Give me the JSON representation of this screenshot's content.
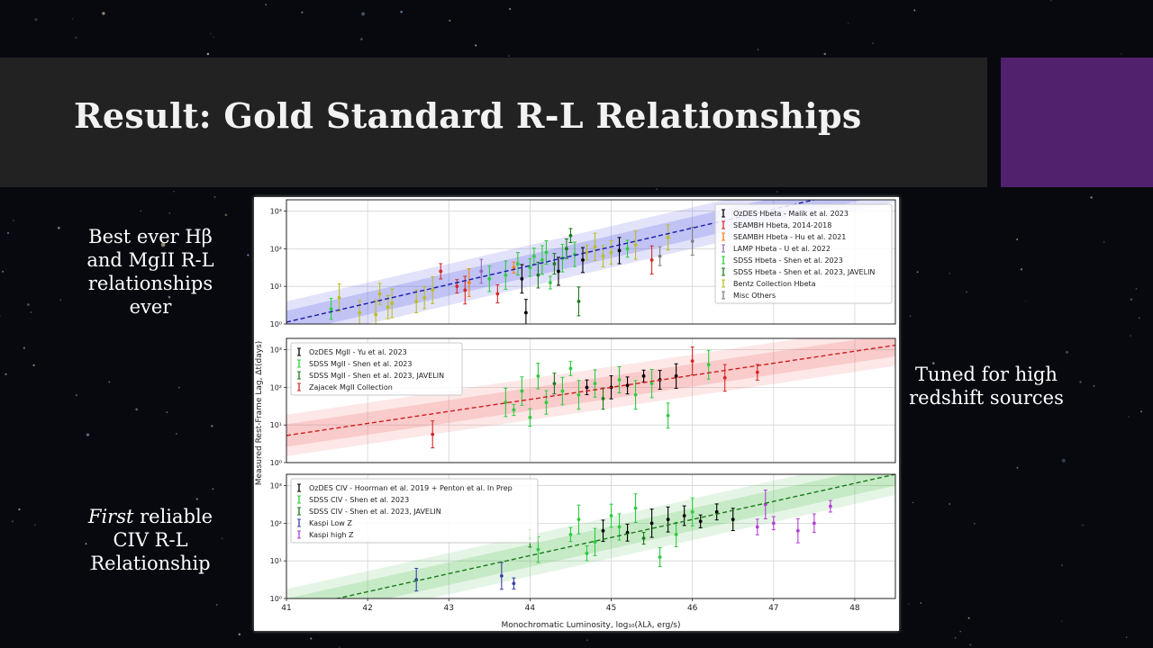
{
  "slide": {
    "title": "Result: Gold Standard R-L Relationships",
    "accent_color": "#52216e",
    "title_bar_color": "#222222",
    "text_left_1_lines": [
      "Best ever Hβ",
      "and MgII R-L",
      "relationships",
      "ever"
    ],
    "text_right_1_lines": [
      "Tuned for high",
      "redshift sources"
    ],
    "text_left_2_lines": [
      "First reliable",
      "CIV R-L",
      "Relationship"
    ]
  },
  "chart_data": {
    "type": "scatter",
    "xlabel": "Monochromatic Luminosity, log₁₀(λLλ, erg/s)",
    "ylabel": "Measured Rest-Frame Lag, Δt(days)",
    "xlim": [
      41,
      48.5
    ],
    "x_ticks": [
      41,
      42,
      43,
      44,
      45,
      46,
      47,
      48
    ],
    "grid": true,
    "panels": [
      {
        "name": "Hbeta",
        "ylim_log10": [
          0,
          3.3
        ],
        "y_tick_labels": [
          "10⁰",
          "10¹",
          "10²",
          "10³"
        ],
        "fit": {
          "intercept_at_41": 0.05,
          "slope": 0.5,
          "color": "#1a1aa8",
          "band_color": "#4b52e0"
        },
        "legend_position": "right",
        "legend": [
          {
            "label": "OzDES Hbeta - Malik et al. 2023",
            "color": "#000000"
          },
          {
            "label": "SEAMBH Hbeta, 2014-2018",
            "color": "#d62728"
          },
          {
            "label": "SEAMBH Hbeta - Hu et al. 2021",
            "color": "#ff7f0e"
          },
          {
            "label": "LAMP Hbeta - U et al. 2022",
            "color": "#9467bd"
          },
          {
            "label": "SDSS Hbeta - Shen et al. 2023",
            "color": "#2ecc40"
          },
          {
            "label": "SDSS Hbeta - Shen et al. 2023, JAVELIN",
            "color": "#1a7a1a"
          },
          {
            "label": "Bentz Collection Hbeta",
            "color": "#bcbd22"
          },
          {
            "label": "Misc Others",
            "color": "#7f7f7f"
          }
        ],
        "points": [
          {
            "x": 41.55,
            "y": 0.4,
            "s": 4
          },
          {
            "x": 41.65,
            "y": 0.7,
            "s": 6
          },
          {
            "x": 41.9,
            "y": 0.3,
            "s": 6
          },
          {
            "x": 42.1,
            "y": 0.25,
            "s": 6
          },
          {
            "x": 42.15,
            "y": 0.8,
            "s": 6
          },
          {
            "x": 42.25,
            "y": 0.45,
            "s": 6
          },
          {
            "x": 42.3,
            "y": 0.55,
            "s": 6
          },
          {
            "x": 42.6,
            "y": 0.6,
            "s": 6
          },
          {
            "x": 42.7,
            "y": 0.7,
            "s": 6
          },
          {
            "x": 42.8,
            "y": 0.9,
            "s": 6
          },
          {
            "x": 42.9,
            "y": 1.4,
            "s": 1
          },
          {
            "x": 43.1,
            "y": 1.0,
            "s": 1
          },
          {
            "x": 43.2,
            "y": 0.9,
            "s": 1
          },
          {
            "x": 43.25,
            "y": 1.1,
            "s": 2
          },
          {
            "x": 43.4,
            "y": 1.4,
            "s": 3
          },
          {
            "x": 43.5,
            "y": 1.2,
            "s": 4
          },
          {
            "x": 43.6,
            "y": 0.8,
            "s": 1
          },
          {
            "x": 43.7,
            "y": 1.3,
            "s": 4
          },
          {
            "x": 43.8,
            "y": 1.5,
            "s": 2
          },
          {
            "x": 43.85,
            "y": 1.6,
            "s": 4
          },
          {
            "x": 43.9,
            "y": 1.2,
            "s": 0
          },
          {
            "x": 43.95,
            "y": 0.3,
            "s": 0
          },
          {
            "x": 44.0,
            "y": 1.5,
            "s": 4
          },
          {
            "x": 44.05,
            "y": 1.8,
            "s": 4
          },
          {
            "x": 44.1,
            "y": 1.3,
            "s": 5
          },
          {
            "x": 44.15,
            "y": 1.7,
            "s": 4
          },
          {
            "x": 44.2,
            "y": 1.9,
            "s": 4
          },
          {
            "x": 44.25,
            "y": 1.1,
            "s": 4
          },
          {
            "x": 44.3,
            "y": 1.6,
            "s": 5
          },
          {
            "x": 44.35,
            "y": 1.4,
            "s": 0
          },
          {
            "x": 44.4,
            "y": 1.75,
            "s": 4
          },
          {
            "x": 44.45,
            "y": 2.0,
            "s": 5
          },
          {
            "x": 44.5,
            "y": 2.35,
            "s": 5
          },
          {
            "x": 44.55,
            "y": 1.85,
            "s": 4
          },
          {
            "x": 44.6,
            "y": 0.6,
            "s": 5
          },
          {
            "x": 44.65,
            "y": 1.7,
            "s": 0
          },
          {
            "x": 44.7,
            "y": 1.9,
            "s": 6
          },
          {
            "x": 44.8,
            "y": 2.05,
            "s": 6
          },
          {
            "x": 44.9,
            "y": 1.8,
            "s": 6
          },
          {
            "x": 45.0,
            "y": 1.9,
            "s": 6
          },
          {
            "x": 45.1,
            "y": 1.95,
            "s": 0
          },
          {
            "x": 45.2,
            "y": 2.0,
            "s": 4
          },
          {
            "x": 45.3,
            "y": 2.1,
            "s": 6
          },
          {
            "x": 45.5,
            "y": 1.7,
            "s": 1
          },
          {
            "x": 45.6,
            "y": 1.8,
            "s": 7
          },
          {
            "x": 45.7,
            "y": 2.3,
            "s": 6
          },
          {
            "x": 46.0,
            "y": 2.2,
            "s": 7
          }
        ]
      },
      {
        "name": "MgII",
        "ylim_log10": [
          0,
          3.3
        ],
        "y_tick_labels": [
          "10⁰",
          "10¹",
          "10²",
          "10³"
        ],
        "fit": {
          "intercept_at_41": 0.72,
          "slope": 0.32,
          "color": "#cc1f1f",
          "band_color": "#f06a6a"
        },
        "legend_position": "left",
        "legend": [
          {
            "label": "OzDES MgII - Yu et al. 2023",
            "color": "#000000"
          },
          {
            "label": "SDSS MgII - Shen et al. 2023",
            "color": "#2ecc40"
          },
          {
            "label": "SDSS MgII - Shen et al. 2023, JAVELIN",
            "color": "#1a7a1a"
          },
          {
            "label": "Zajacek MgII Collection",
            "color": "#d62728"
          }
        ],
        "points": [
          {
            "x": 42.8,
            "y": 0.75,
            "s": 3
          },
          {
            "x": 43.7,
            "y": 1.6,
            "s": 1
          },
          {
            "x": 43.8,
            "y": 1.4,
            "s": 1
          },
          {
            "x": 43.9,
            "y": 1.9,
            "s": 1
          },
          {
            "x": 44.0,
            "y": 1.2,
            "s": 1
          },
          {
            "x": 44.1,
            "y": 2.3,
            "s": 1
          },
          {
            "x": 44.2,
            "y": 1.6,
            "s": 1
          },
          {
            "x": 44.3,
            "y": 2.1,
            "s": 2
          },
          {
            "x": 44.4,
            "y": 1.9,
            "s": 1
          },
          {
            "x": 44.5,
            "y": 2.5,
            "s": 1
          },
          {
            "x": 44.6,
            "y": 1.8,
            "s": 1
          },
          {
            "x": 44.7,
            "y": 2.0,
            "s": 0
          },
          {
            "x": 44.8,
            "y": 2.1,
            "s": 1
          },
          {
            "x": 44.9,
            "y": 1.7,
            "s": 2
          },
          {
            "x": 45.0,
            "y": 2.0,
            "s": 0
          },
          {
            "x": 45.1,
            "y": 2.2,
            "s": 1
          },
          {
            "x": 45.2,
            "y": 2.05,
            "s": 0
          },
          {
            "x": 45.3,
            "y": 1.8,
            "s": 1
          },
          {
            "x": 45.4,
            "y": 2.3,
            "s": 0
          },
          {
            "x": 45.5,
            "y": 2.1,
            "s": 1
          },
          {
            "x": 45.6,
            "y": 2.2,
            "s": 0
          },
          {
            "x": 45.7,
            "y": 1.25,
            "s": 1
          },
          {
            "x": 45.8,
            "y": 2.3,
            "s": 0
          },
          {
            "x": 46.0,
            "y": 2.7,
            "s": 3
          },
          {
            "x": 46.2,
            "y": 2.6,
            "s": 1
          },
          {
            "x": 46.4,
            "y": 2.25,
            "s": 3
          },
          {
            "x": 46.8,
            "y": 2.4,
            "s": 3
          }
        ]
      },
      {
        "name": "CIV",
        "ylim_log10": [
          0,
          3.3
        ],
        "y_tick_labels": [
          "10⁰",
          "10¹",
          "10²",
          "10³"
        ],
        "fit": {
          "intercept_at_41": -0.3,
          "slope": 0.48,
          "color": "#1a7a1a",
          "band_color": "#5cc25c"
        },
        "legend_position": "left",
        "legend": [
          {
            "label": "OzDES CIV - Hoorman et al. 2019 + Penton et al. In Prep",
            "color": "#000000"
          },
          {
            "label": "SDSS CIV - Shen et al. 2023",
            "color": "#2ecc40"
          },
          {
            "label": "SDSS CIV - Shen et al. 2023, JAVELIN",
            "color": "#1a7a1a"
          },
          {
            "label": "Kaspi Low Z",
            "color": "#3b3fa8"
          },
          {
            "label": "Kaspi high Z",
            "color": "#b23fd6"
          }
        ],
        "points": [
          {
            "x": 42.6,
            "y": 0.5,
            "s": 3
          },
          {
            "x": 43.65,
            "y": 0.6,
            "s": 3
          },
          {
            "x": 43.8,
            "y": 0.4,
            "s": 3
          },
          {
            "x": 44.0,
            "y": 1.6,
            "s": 2
          },
          {
            "x": 44.1,
            "y": 1.3,
            "s": 1
          },
          {
            "x": 44.5,
            "y": 1.7,
            "s": 1
          },
          {
            "x": 44.6,
            "y": 2.1,
            "s": 1
          },
          {
            "x": 44.7,
            "y": 1.2,
            "s": 1
          },
          {
            "x": 44.8,
            "y": 1.5,
            "s": 1
          },
          {
            "x": 44.9,
            "y": 1.8,
            "s": 0
          },
          {
            "x": 45.0,
            "y": 2.2,
            "s": 1
          },
          {
            "x": 45.1,
            "y": 1.9,
            "s": 1
          },
          {
            "x": 45.2,
            "y": 1.75,
            "s": 0
          },
          {
            "x": 45.3,
            "y": 2.4,
            "s": 1
          },
          {
            "x": 45.4,
            "y": 1.6,
            "s": 2
          },
          {
            "x": 45.5,
            "y": 2.0,
            "s": 0
          },
          {
            "x": 45.6,
            "y": 1.1,
            "s": 1
          },
          {
            "x": 45.7,
            "y": 2.1,
            "s": 0
          },
          {
            "x": 45.8,
            "y": 1.7,
            "s": 1
          },
          {
            "x": 45.9,
            "y": 2.2,
            "s": 0
          },
          {
            "x": 46.0,
            "y": 2.3,
            "s": 1
          },
          {
            "x": 46.1,
            "y": 2.05,
            "s": 0
          },
          {
            "x": 46.3,
            "y": 2.3,
            "s": 0
          },
          {
            "x": 46.5,
            "y": 2.1,
            "s": 0
          },
          {
            "x": 46.8,
            "y": 1.9,
            "s": 4
          },
          {
            "x": 46.9,
            "y": 2.5,
            "s": 4
          },
          {
            "x": 47.0,
            "y": 2.0,
            "s": 4
          },
          {
            "x": 47.3,
            "y": 1.8,
            "s": 4
          },
          {
            "x": 47.5,
            "y": 2.0,
            "s": 4
          },
          {
            "x": 47.7,
            "y": 2.45,
            "s": 4
          }
        ]
      }
    ]
  }
}
